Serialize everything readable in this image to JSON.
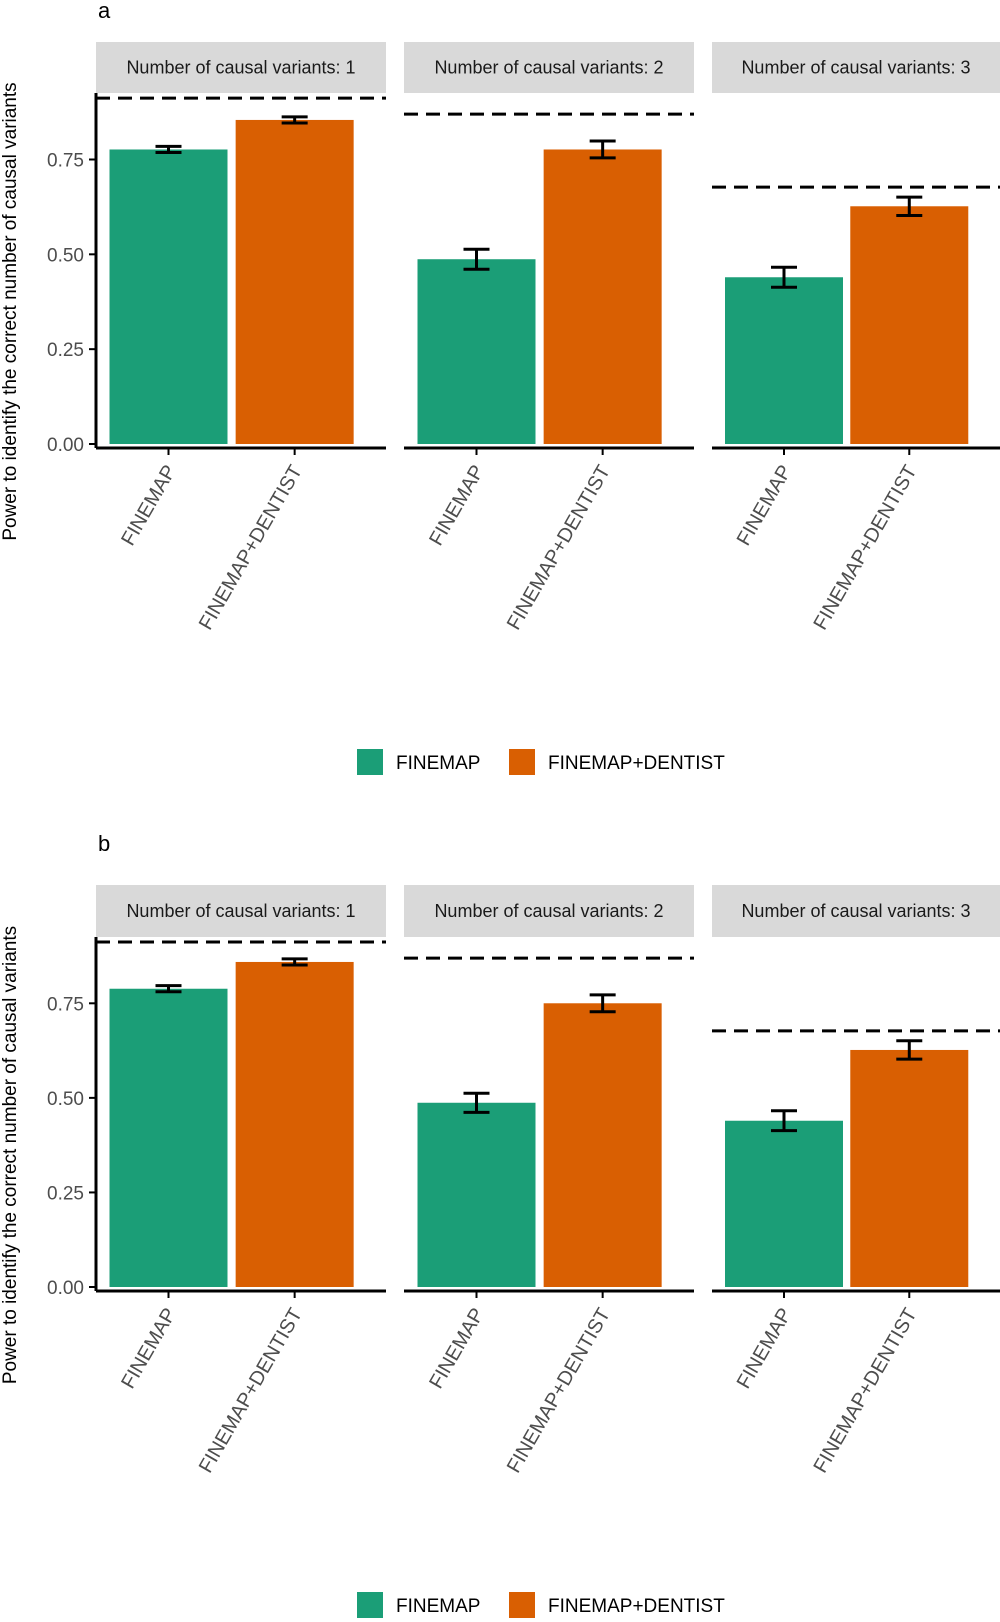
{
  "colors": {
    "finemap": "#1b9e77",
    "finemap_dentist": "#d95f02",
    "strip_bg": "#d9d9d9",
    "axis": "#000000",
    "reference_line": "#000000"
  },
  "chart_data": [
    {
      "type": "bar",
      "panel_label": "a",
      "ylabel": "Power to identify the correct number of causal variants",
      "ylim": [
        0,
        0.92
      ],
      "yticks": [
        0.0,
        0.25,
        0.5,
        0.75
      ],
      "ytick_labels": [
        "0.00",
        "0.25",
        "0.50",
        "0.75"
      ],
      "categories": [
        "FINEMAP",
        "FINEMAP+DENTIST"
      ],
      "legend": {
        "position": "bottom",
        "entries": [
          "FINEMAP",
          "FINEMAP+DENTIST"
        ]
      },
      "facets": [
        {
          "label": "Number of causal variants: 1",
          "values": [
            0.778,
            0.855
          ],
          "errors": [
            0.008,
            0.008
          ],
          "reference": 0.912
        },
        {
          "label": "Number of causal variants: 2",
          "values": [
            0.492,
            0.778
          ],
          "errors": [
            0.026,
            0.022
          ],
          "reference": 0.87
        },
        {
          "label": "Number of causal variants: 3",
          "values": [
            0.445,
            0.63
          ],
          "errors": [
            0.026,
            0.024
          ],
          "reference": 0.68
        }
      ]
    },
    {
      "type": "bar",
      "panel_label": "b",
      "ylabel": "Power to identify the correct number of causal variants",
      "ylim": [
        0,
        0.92
      ],
      "yticks": [
        0.0,
        0.25,
        0.5,
        0.75
      ],
      "ytick_labels": [
        "0.00",
        "0.25",
        "0.50",
        "0.75"
      ],
      "categories": [
        "FINEMAP",
        "FINEMAP+DENTIST"
      ],
      "legend": {
        "position": "bottom",
        "entries": [
          "FINEMAP",
          "FINEMAP+DENTIST"
        ]
      },
      "facets": [
        {
          "label": "Number of causal variants: 1",
          "values": [
            0.79,
            0.86
          ],
          "errors": [
            0.008,
            0.008
          ],
          "reference": 0.912
        },
        {
          "label": "Number of causal variants: 2",
          "values": [
            0.492,
            0.752
          ],
          "errors": [
            0.025,
            0.022
          ],
          "reference": 0.87
        },
        {
          "label": "Number of causal variants: 3",
          "values": [
            0.445,
            0.63
          ],
          "errors": [
            0.026,
            0.024
          ],
          "reference": 0.68
        }
      ]
    }
  ]
}
